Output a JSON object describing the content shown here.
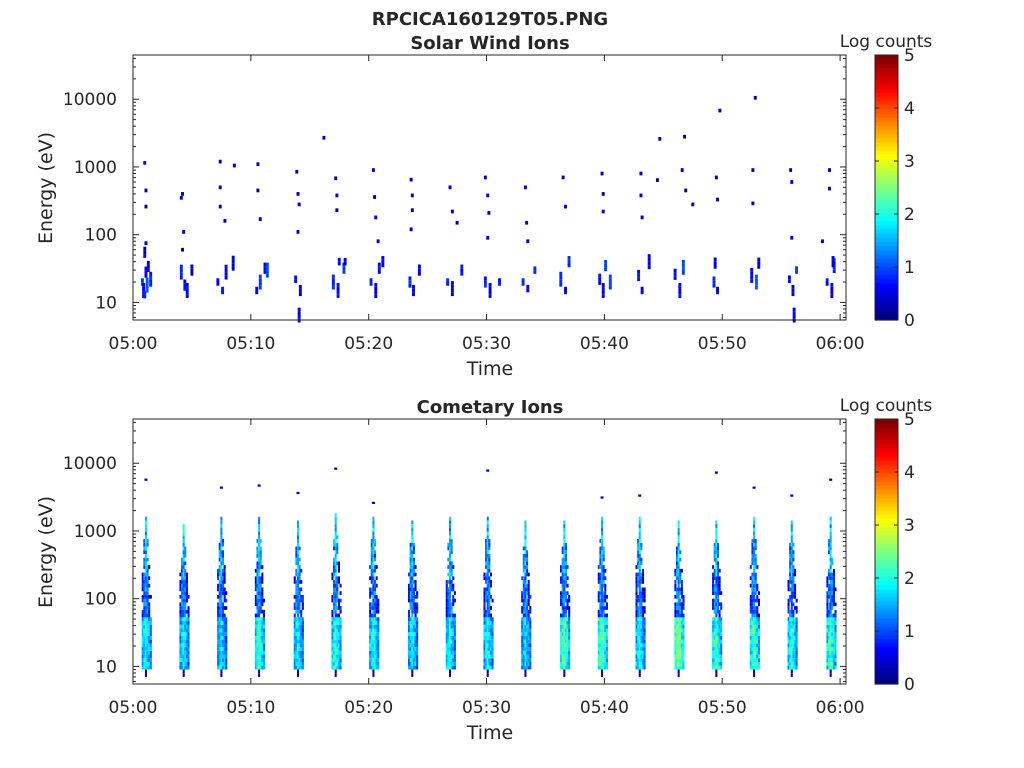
{
  "figure_title": "RPCICA160129T05.PNG",
  "panels": [
    {
      "title": "Solar Wind Ions",
      "colorbar_label": "Log counts",
      "colorbar_ticks": [
        "0",
        "1",
        "2",
        "3",
        "4",
        "5"
      ]
    },
    {
      "title": "Cometary Ions",
      "colorbar_label": "Log counts",
      "colorbar_ticks": [
        "0",
        "1",
        "2",
        "3",
        "4",
        "5"
      ]
    }
  ],
  "chart_data": [
    {
      "type": "heatmap",
      "title": "Solar Wind Ions",
      "xlabel": "Time",
      "ylabel": "Energy (eV)",
      "x_ticks": [
        "05:00",
        "05:10",
        "05:20",
        "05:30",
        "05:40",
        "05:50",
        "06:00"
      ],
      "x_range_minutes": [
        0,
        60.5
      ],
      "y_ticks": [
        "10",
        "100",
        "1000",
        "10000"
      ],
      "y_scale": "log",
      "ylim": [
        5.5,
        45000
      ],
      "clim": [
        0,
        5
      ],
      "colormap": "jet",
      "colorbar_label": "Log counts",
      "scan_times_minutes": [
        1.1,
        4.3,
        7.5,
        10.7,
        14.0,
        17.2,
        20.4,
        23.7,
        26.9,
        30.1,
        33.3,
        36.6,
        39.8,
        43.0,
        46.3,
        49.5,
        52.7,
        55.9,
        59.2
      ],
      "column_width_minutes": 0.25,
      "cells": [
        [
          0.8,
          20,
          0.8
        ],
        [
          0.9,
          15,
          0.5
        ],
        [
          1.0,
          13,
          0.6
        ],
        [
          1.1,
          28,
          0.5
        ],
        [
          1.2,
          18,
          0.9
        ],
        [
          1.3,
          34,
          0.5
        ],
        [
          1.5,
          22,
          0.7
        ],
        [
          1.0,
          55,
          0.3
        ],
        [
          1.1,
          75,
          0.2
        ],
        [
          1.0,
          1150,
          0.3
        ],
        [
          1.1,
          450,
          0.2
        ],
        [
          1.1,
          260,
          0.2
        ],
        [
          4.1,
          28,
          0.7
        ],
        [
          4.4,
          18,
          0.6
        ],
        [
          4.6,
          15,
          0.5
        ],
        [
          4.3,
          110,
          0.3
        ],
        [
          4.2,
          60,
          0.2
        ],
        [
          4.1,
          350,
          0.3
        ],
        [
          4.2,
          400,
          0.2
        ],
        [
          5.0,
          30,
          0.3
        ],
        [
          7.2,
          20,
          0.5
        ],
        [
          7.6,
          15,
          0.6
        ],
        [
          7.9,
          28,
          0.5
        ],
        [
          7.4,
          1200,
          0.2
        ],
        [
          7.4,
          500,
          0.3
        ],
        [
          7.4,
          260,
          0.2
        ],
        [
          7.8,
          160,
          0.3
        ],
        [
          8.6,
          1050,
          0.3
        ],
        [
          8.5,
          38,
          0.4
        ],
        [
          10.5,
          15,
          0.6
        ],
        [
          10.8,
          20,
          0.8
        ],
        [
          11.2,
          32,
          0.5
        ],
        [
          10.6,
          1100,
          0.3
        ],
        [
          10.6,
          450,
          0.2
        ],
        [
          10.8,
          170,
          0.3
        ],
        [
          11.4,
          30,
          0.9
        ],
        [
          13.8,
          22,
          0.6
        ],
        [
          14.1,
          6.5,
          0.5
        ],
        [
          14.2,
          15,
          0.4
        ],
        [
          14.0,
          400,
          0.2
        ],
        [
          14.1,
          280,
          0.3
        ],
        [
          13.9,
          850,
          0.3
        ],
        [
          14.0,
          110,
          0.2
        ],
        [
          16.2,
          2700,
          0.2
        ],
        [
          17.0,
          20,
          0.7
        ],
        [
          17.4,
          15,
          0.5
        ],
        [
          17.2,
          680,
          0.2
        ],
        [
          17.3,
          380,
          0.3
        ],
        [
          17.5,
          40,
          0.5
        ],
        [
          17.9,
          32,
          0.8
        ],
        [
          17.3,
          230,
          0.2
        ],
        [
          18.0,
          40,
          0.4
        ],
        [
          20.2,
          20,
          0.7
        ],
        [
          20.6,
          15,
          0.5
        ],
        [
          20.9,
          32,
          0.6
        ],
        [
          20.4,
          900,
          0.2
        ],
        [
          20.5,
          360,
          0.2
        ],
        [
          20.6,
          180,
          0.3
        ],
        [
          20.8,
          80,
          0.2
        ],
        [
          21.2,
          40,
          0.5
        ],
        [
          23.5,
          20,
          0.7
        ],
        [
          23.8,
          15,
          0.5
        ],
        [
          23.6,
          650,
          0.2
        ],
        [
          23.7,
          380,
          0.2
        ],
        [
          23.7,
          230,
          0.3
        ],
        [
          23.6,
          120,
          0.2
        ],
        [
          24.3,
          30,
          0.5
        ],
        [
          26.7,
          20,
          0.7
        ],
        [
          27.1,
          16,
          0.5
        ],
        [
          26.9,
          500,
          0.3
        ],
        [
          27.1,
          220,
          0.2
        ],
        [
          27.9,
          30,
          0.6
        ],
        [
          27.5,
          150,
          0.2
        ],
        [
          29.9,
          20,
          0.7
        ],
        [
          30.3,
          15,
          0.5
        ],
        [
          29.9,
          700,
          0.3
        ],
        [
          30.1,
          380,
          0.3
        ],
        [
          30.2,
          210,
          0.2
        ],
        [
          30.1,
          90,
          0.2
        ],
        [
          31.1,
          20,
          0.6
        ],
        [
          33.1,
          20,
          0.7
        ],
        [
          33.5,
          16,
          0.5
        ],
        [
          33.3,
          500,
          0.2
        ],
        [
          33.4,
          150,
          0.3
        ],
        [
          33.5,
          80,
          0.3
        ],
        [
          34.1,
          30,
          0.8
        ],
        [
          36.3,
          22,
          0.7
        ],
        [
          36.7,
          15,
          0.5
        ],
        [
          36.5,
          700,
          0.3
        ],
        [
          36.7,
          260,
          0.3
        ],
        [
          37.0,
          40,
          0.7
        ],
        [
          39.6,
          22,
          0.6
        ],
        [
          39.9,
          15,
          0.5
        ],
        [
          39.8,
          800,
          0.2
        ],
        [
          39.9,
          400,
          0.2
        ],
        [
          39.9,
          220,
          0.3
        ],
        [
          40.5,
          20,
          0.8
        ],
        [
          40.1,
          35,
          0.9
        ],
        [
          42.9,
          25,
          0.6
        ],
        [
          43.2,
          15,
          0.5
        ],
        [
          43.1,
          800,
          0.2
        ],
        [
          43.1,
          380,
          0.3
        ],
        [
          43.2,
          180,
          0.2
        ],
        [
          43.8,
          40,
          0.5
        ],
        [
          44.5,
          640,
          0.2
        ],
        [
          44.7,
          2600,
          0.2
        ],
        [
          46.0,
          26,
          0.6
        ],
        [
          46.4,
          15,
          0.5
        ],
        [
          46.7,
          33,
          0.9
        ],
        [
          46.6,
          900,
          0.2
        ],
        [
          46.8,
          2800,
          0.2
        ],
        [
          47.5,
          280,
          0.2
        ],
        [
          46.9,
          450,
          0.2
        ],
        [
          49.3,
          20,
          0.7
        ],
        [
          49.6,
          15,
          0.5
        ],
        [
          49.5,
          700,
          0.2
        ],
        [
          49.6,
          330,
          0.2
        ],
        [
          49.4,
          38,
          0.4
        ],
        [
          49.8,
          6800,
          0.2
        ],
        [
          52.5,
          25,
          0.6
        ],
        [
          52.9,
          20,
          0.9
        ],
        [
          52.6,
          900,
          0.2
        ],
        [
          52.6,
          290,
          0.2
        ],
        [
          52.8,
          10500,
          0.2
        ],
        [
          53.1,
          38,
          0.4
        ],
        [
          55.7,
          22,
          0.6
        ],
        [
          56.0,
          15,
          0.5
        ],
        [
          56.1,
          6.5,
          0.5
        ],
        [
          55.8,
          900,
          0.2
        ],
        [
          55.9,
          600,
          0.2
        ],
        [
          55.9,
          90,
          0.3
        ],
        [
          56.3,
          30,
          0.8
        ],
        [
          58.5,
          80,
          0.2
        ],
        [
          58.9,
          20,
          0.6
        ],
        [
          59.3,
          15,
          0.5
        ],
        [
          59.5,
          35,
          0.8
        ],
        [
          59.1,
          900,
          0.2
        ],
        [
          59.1,
          480,
          0.2
        ],
        [
          59.4,
          40,
          0.4
        ]
      ]
    },
    {
      "type": "heatmap",
      "title": "Cometary Ions",
      "xlabel": "Time",
      "ylabel": "Energy (eV)",
      "x_ticks": [
        "05:00",
        "05:10",
        "05:20",
        "05:30",
        "05:40",
        "05:50",
        "06:00"
      ],
      "x_range_minutes": [
        0,
        60.5
      ],
      "y_ticks": [
        "10",
        "100",
        "1000",
        "10000"
      ],
      "y_scale": "log",
      "ylim": [
        5.5,
        45000
      ],
      "clim": [
        0,
        5
      ],
      "colormap": "jet",
      "colorbar_label": "Log counts",
      "scan_times_minutes": [
        1.1,
        4.3,
        7.5,
        10.7,
        14.0,
        17.2,
        20.4,
        23.7,
        26.9,
        30.1,
        33.3,
        36.6,
        39.8,
        43.0,
        46.3,
        49.5,
        52.7,
        55.9,
        59.2
      ],
      "column_width_minutes": 0.25,
      "spikes": [
        {
          "t": 1.1,
          "top": 1500,
          "peak": 2.0,
          "dot": 5500
        },
        {
          "t": 4.3,
          "top": 1200,
          "peak": 1.9
        },
        {
          "t": 7.5,
          "top": 1500,
          "peak": 1.8,
          "dot": 4200
        },
        {
          "t": 10.7,
          "top": 1600,
          "peak": 2.2,
          "dot": 4500
        },
        {
          "t": 14.0,
          "top": 1300,
          "peak": 1.9,
          "dot": 3500
        },
        {
          "t": 17.2,
          "top": 1700,
          "peak": 2.1,
          "dot": 8000
        },
        {
          "t": 20.4,
          "top": 1500,
          "peak": 2.0,
          "dot": 2500
        },
        {
          "t": 23.7,
          "top": 1400,
          "peak": 1.9
        },
        {
          "t": 26.9,
          "top": 1500,
          "peak": 2.0
        },
        {
          "t": 30.1,
          "top": 1500,
          "peak": 2.0,
          "dot": 7500
        },
        {
          "t": 33.3,
          "top": 1300,
          "peak": 1.8
        },
        {
          "t": 36.6,
          "top": 1400,
          "peak": 2.3
        },
        {
          "t": 39.8,
          "top": 1500,
          "peak": 2.4,
          "dot": 3000
        },
        {
          "t": 43.0,
          "top": 1500,
          "peak": 2.0,
          "dot": 3200
        },
        {
          "t": 46.3,
          "top": 1300,
          "peak": 2.5
        },
        {
          "t": 49.5,
          "top": 1400,
          "peak": 2.2,
          "dot": 7000
        },
        {
          "t": 52.7,
          "top": 1500,
          "peak": 2.3,
          "dot": 4200
        },
        {
          "t": 55.9,
          "top": 1400,
          "peak": 2.1,
          "dot": 3200
        },
        {
          "t": 59.2,
          "top": 1500,
          "peak": 2.2,
          "dot": 5500
        }
      ]
    }
  ]
}
